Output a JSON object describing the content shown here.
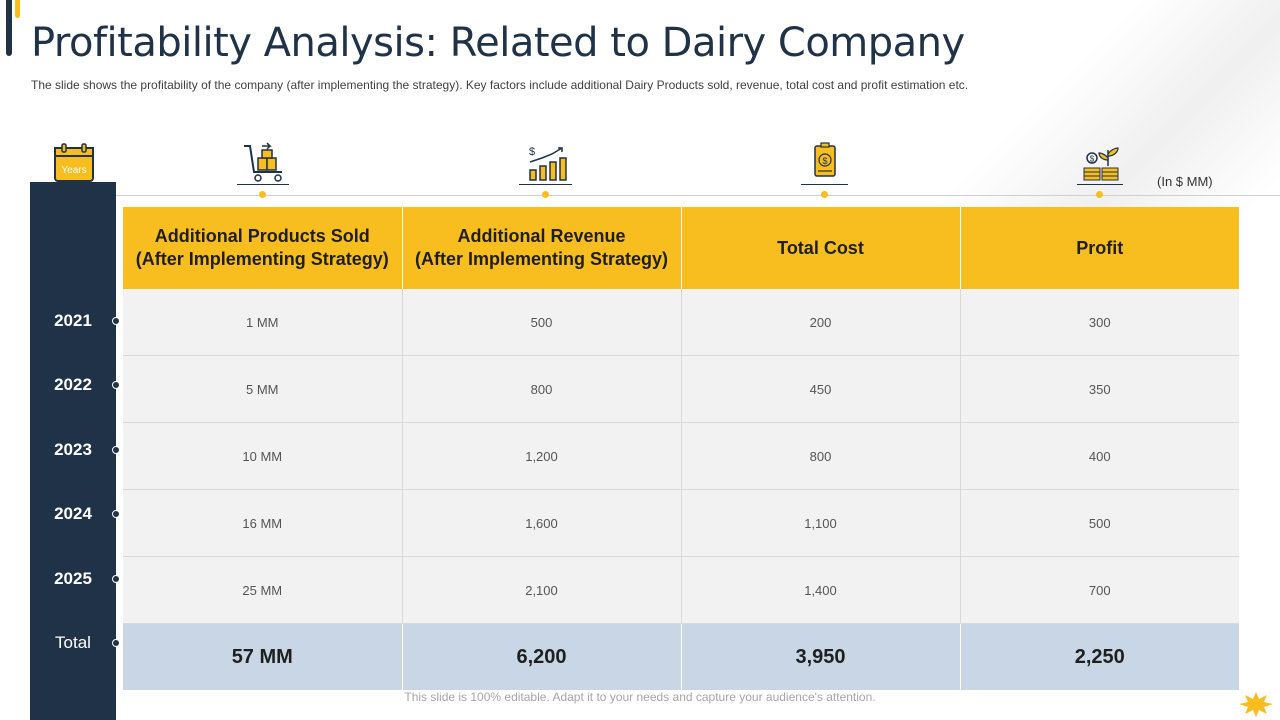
{
  "title": "Profitability Analysis: Related to Dairy Company",
  "subtitle": "The slide shows the profitability of the company (after implementing the strategy). Key factors include additional Dairy Products sold, revenue,  total cost and profit  estimation etc.",
  "years_icon_label": "Years",
  "unit_note": "(In $ MM)",
  "icons": [
    "cart-icon",
    "revenue-chart-icon",
    "cost-tag-icon",
    "profit-plant-coins-icon"
  ],
  "table": {
    "headers": [
      {
        "line1": "Additional Products Sold",
        "line2": "(After Implementing Strategy)"
      },
      {
        "line1": "Additional Revenue",
        "line2": "(After Implementing Strategy)"
      },
      {
        "line1": "Total Cost",
        "line2": ""
      },
      {
        "line1": "Profit",
        "line2": ""
      }
    ],
    "rows": [
      {
        "year": "2021",
        "cells": [
          "1 MM",
          "500",
          "200",
          "300"
        ]
      },
      {
        "year": "2022",
        "cells": [
          "5 MM",
          "800",
          "450",
          "350"
        ]
      },
      {
        "year": "2023",
        "cells": [
          "10 MM",
          "1,200",
          "800",
          "400"
        ]
      },
      {
        "year": "2024",
        "cells": [
          "16 MM",
          "1,600",
          "1,100",
          "500"
        ]
      },
      {
        "year": "2025",
        "cells": [
          "25 MM",
          "2,100",
          "1,400",
          "700"
        ]
      }
    ],
    "total": {
      "label": "Total",
      "cells": [
        "57 MM",
        "6,200",
        "3,950",
        "2,250"
      ]
    }
  },
  "footer": "This slide is 100% editable. Adapt it to your needs and capture your audience's attention.",
  "colors": {
    "navy": "#1f3247",
    "accent": "#f8be1f",
    "row_bg": "#f2f2f2",
    "total_bg": "#c8d6e5"
  }
}
